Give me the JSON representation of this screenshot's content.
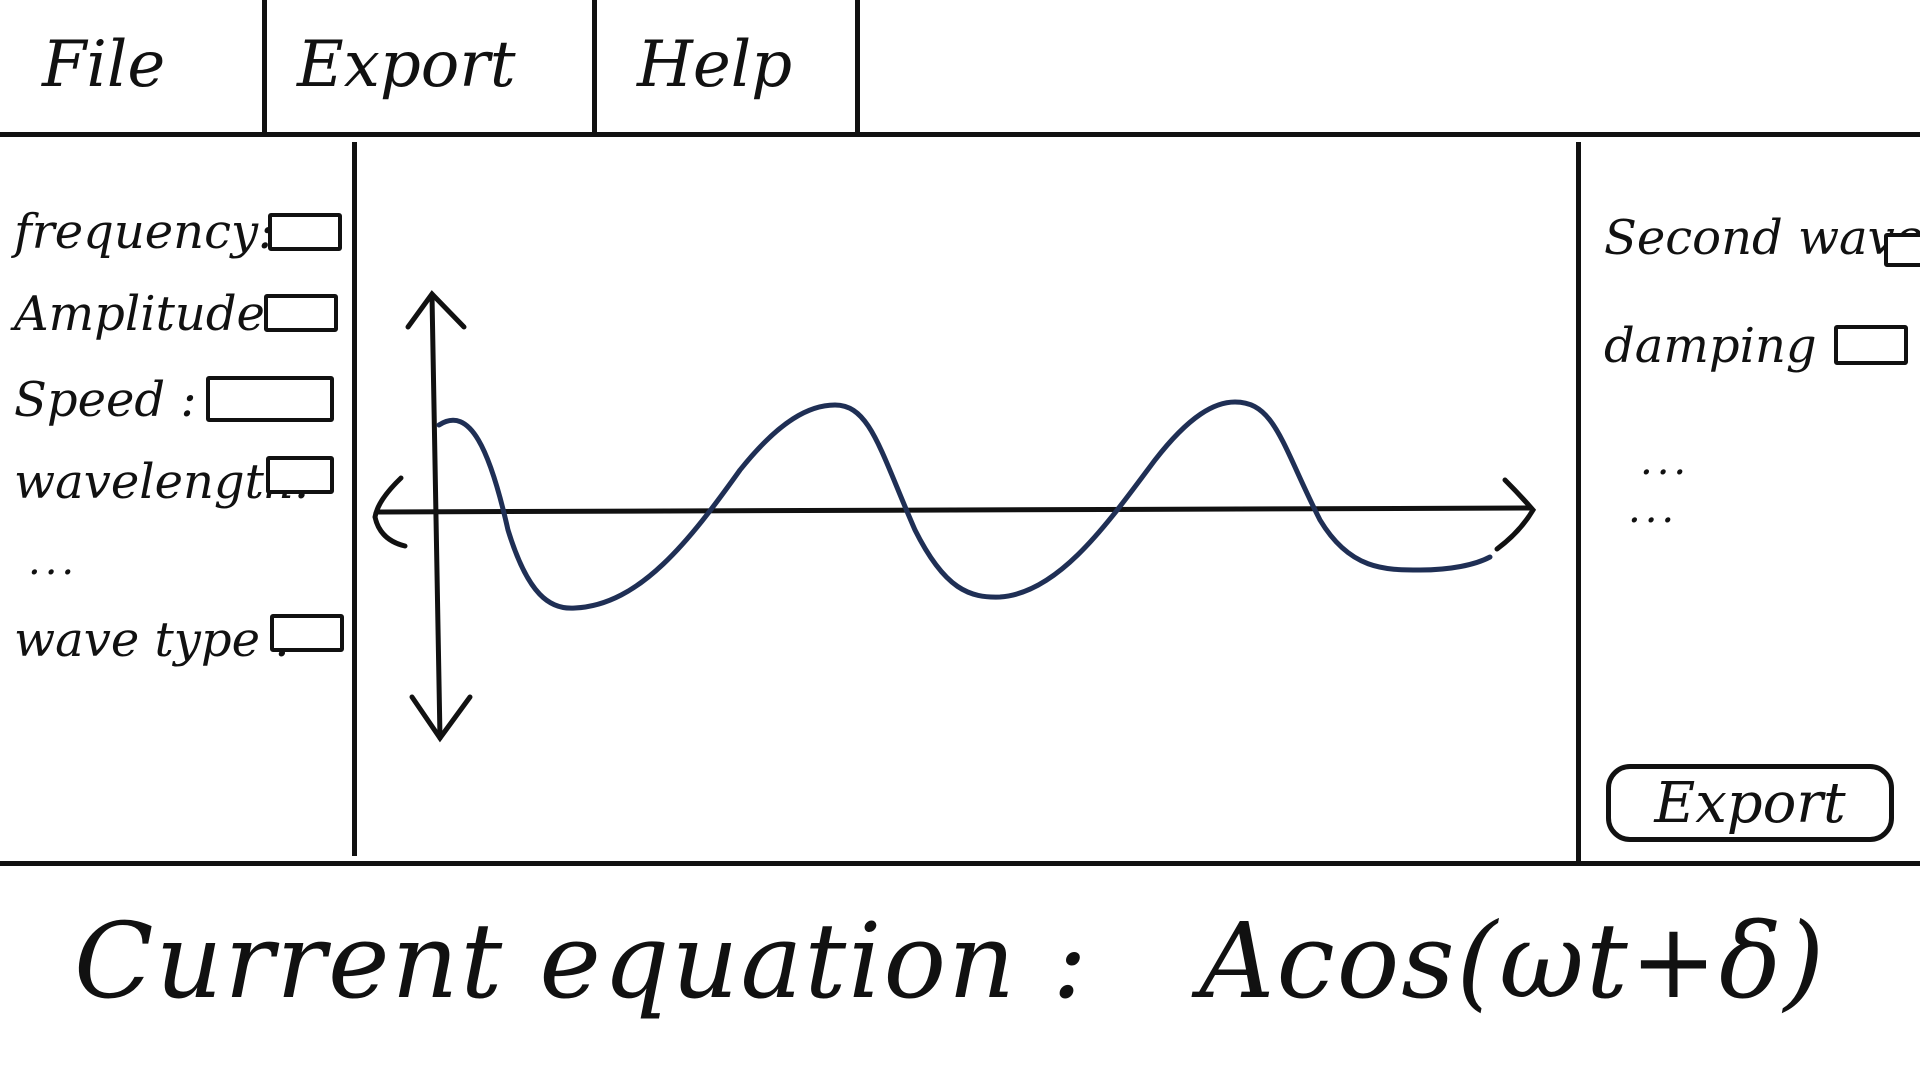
{
  "menu": {
    "items": [
      {
        "label": "File"
      },
      {
        "label": "Export"
      },
      {
        "label": "Help"
      }
    ]
  },
  "left_panel": {
    "params": [
      {
        "label": "frequency:",
        "value": ""
      },
      {
        "label": "Amplitude:",
        "value": ""
      },
      {
        "label": "Speed :",
        "value": ""
      },
      {
        "label": "wavelength:",
        "value": ""
      },
      {
        "label": "wave type :",
        "value": ""
      }
    ],
    "ellipsis": "..."
  },
  "right_panel": {
    "second_wave_label": "Second wave:",
    "damping_label": "damping :",
    "ellipsis_1": "...",
    "ellipsis_2": "...",
    "export_label": "Export"
  },
  "plot": {
    "wave_color": "#1f2f55",
    "axis_color": "#111111"
  },
  "footer": {
    "label": "Current equation :",
    "equation": "Acos(ωt+δ)"
  }
}
